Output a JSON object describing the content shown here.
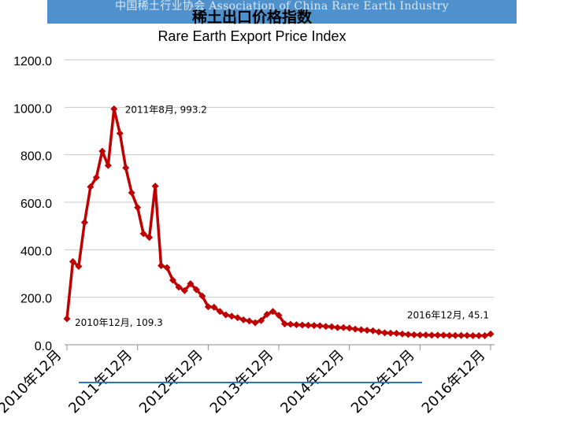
{
  "banner": {
    "text": "中国稀土行业协会 Association of China Rare Earth Industry"
  },
  "chart_data": {
    "type": "line",
    "title": "稀土出口价格指数",
    "subtitle": "Rare Earth Export Price Index",
    "xlabel": "",
    "ylabel": "",
    "ylim": [
      0,
      1200
    ],
    "y_ticks": [
      "0.0",
      "200.0",
      "400.0",
      "600.0",
      "800.0",
      "1000.0",
      "1200.0"
    ],
    "x_tick_labels": [
      "2010年12月",
      "2011年12月",
      "2012年12月",
      "2013年12月",
      "2014年12月",
      "2015年12月",
      "2016年12月"
    ],
    "grid": true,
    "legend": "none",
    "color": "#c00000",
    "series": [
      {
        "x": [
          "2010-12",
          "2011-01",
          "2011-02",
          "2011-03",
          "2011-04",
          "2011-05",
          "2011-06",
          "2011-07",
          "2011-08",
          "2011-09",
          "2011-10",
          "2011-11",
          "2011-12",
          "2012-01",
          "2012-02",
          "2012-03",
          "2012-04",
          "2012-05",
          "2012-06",
          "2012-07",
          "2012-08",
          "2012-09",
          "2012-10",
          "2012-11",
          "2012-12",
          "2013-01",
          "2013-02",
          "2013-03",
          "2013-04",
          "2013-05",
          "2013-06",
          "2013-07",
          "2013-08",
          "2013-09",
          "2013-10",
          "2013-11",
          "2013-12",
          "2014-01",
          "2014-02",
          "2014-03",
          "2014-04",
          "2014-05",
          "2014-06",
          "2014-07",
          "2014-08",
          "2014-09",
          "2014-10",
          "2014-11",
          "2014-12",
          "2015-01",
          "2015-02",
          "2015-03",
          "2015-04",
          "2015-05",
          "2015-06",
          "2015-07",
          "2015-08",
          "2015-09",
          "2015-10",
          "2015-11",
          "2015-12",
          "2016-01",
          "2016-02",
          "2016-03",
          "2016-04",
          "2016-05",
          "2016-06",
          "2016-07",
          "2016-08",
          "2016-09",
          "2016-10",
          "2016-11",
          "2016-12"
        ],
        "values": [
          109.3,
          350,
          330,
          515,
          665,
          705,
          815,
          755,
          993.2,
          890,
          745,
          640,
          578,
          468,
          452,
          668,
          333,
          325,
          272,
          243,
          228,
          257,
          232,
          205,
          160,
          158,
          140,
          126,
          120,
          114,
          105,
          100,
          93,
          102,
          128,
          140,
          124,
          88,
          86,
          84,
          83,
          82,
          81,
          80,
          77,
          76,
          72,
          72,
          70,
          66,
          63,
          61,
          59,
          54,
          50,
          49,
          48,
          45,
          43,
          42,
          41,
          41,
          40,
          40,
          40,
          39,
          39,
          39,
          39,
          38,
          38,
          38,
          45.1
        ]
      }
    ],
    "annotations": [
      {
        "text": "2010年12月, 109.3",
        "x": "2010-12",
        "y": 109.3
      },
      {
        "text": "2011年8月, 993.2",
        "x": "2011-08",
        "y": 993.2
      },
      {
        "text": "2016年12月, 45.1",
        "x": "2016-12",
        "y": 45.1
      }
    ]
  }
}
